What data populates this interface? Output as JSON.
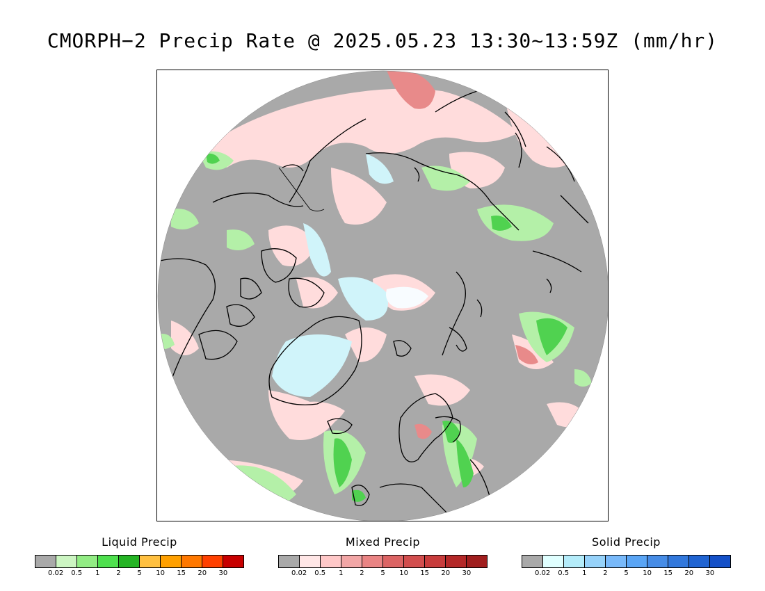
{
  "title": "CMORPH−2 Precip Rate @ 2025.05.23 13:30~13:59Z (mm/hr)",
  "colors": {
    "nodata_gray": "#a9a9a9",
    "light_pink": "#ffdcdc",
    "light_green": "#b4f0a8",
    "green": "#50d250",
    "light_cyan": "#d0f4fa",
    "red": "#d05050"
  },
  "map": {
    "icons": [
      "coastline-icon"
    ]
  },
  "legends": [
    {
      "title": "Liquid Precip",
      "colors": [
        "#a9a9a9",
        "#ccf5c2",
        "#92ec84",
        "#4ee04e",
        "#24b424",
        "#ffc040",
        "#ffa000",
        "#ff7800",
        "#ff4000",
        "#c80000"
      ],
      "ticks": [
        "0.02",
        "0.5",
        "1",
        "2",
        "5",
        "10",
        "15",
        "20",
        "30"
      ]
    },
    {
      "title": "Mixed Precip",
      "colors": [
        "#a9a9a9",
        "#ffe6e6",
        "#ffc8c8",
        "#f2a6a6",
        "#ea8484",
        "#dc6464",
        "#d24e4e",
        "#c83c3c",
        "#b42828",
        "#a01e1e"
      ],
      "ticks": [
        "0.02",
        "0.5",
        "1",
        "2",
        "5",
        "10",
        "15",
        "20",
        "30"
      ]
    },
    {
      "title": "Solid Precip",
      "colors": [
        "#a9a9a9",
        "#e0ffff",
        "#b4ecfa",
        "#96d2fa",
        "#78b9fa",
        "#5aa5f5",
        "#468ce6",
        "#3278dc",
        "#2064d2",
        "#1450c8"
      ],
      "ticks": [
        "0.02",
        "0.5",
        "1",
        "2",
        "5",
        "10",
        "15",
        "20",
        "30"
      ]
    }
  ]
}
